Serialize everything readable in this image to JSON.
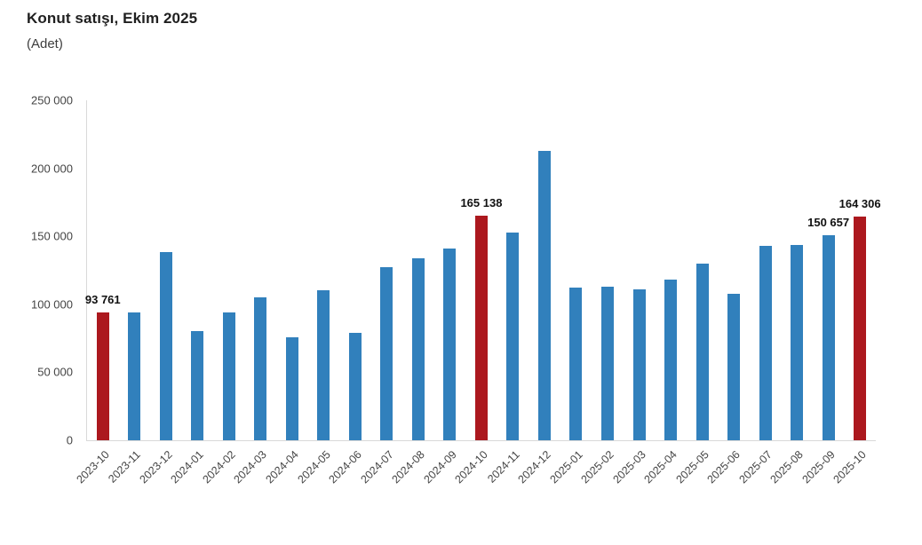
{
  "header": {
    "title": "Konut satışı, Ekim 2025",
    "subtitle": "(Adet)"
  },
  "colors": {
    "bar_default": "#3180BC",
    "bar_highlight": "#AC181E",
    "axis_line": "#D9D9D9",
    "tick_text": "#444444",
    "label_text": "#111111",
    "title_text": "#1F1F1F"
  },
  "chart_data": {
    "type": "bar",
    "title": "Konut satışı, Ekim 2025",
    "subtitle": "(Adet)",
    "xlabel": "",
    "ylabel": "Adet",
    "ylim": [
      0,
      250000
    ],
    "yticks": [
      0,
      50000,
      100000,
      150000,
      200000,
      250000
    ],
    "grid": false,
    "legend": false,
    "categories": [
      "2023-10",
      "2023-11",
      "2023-12",
      "2024-01",
      "2024-02",
      "2024-03",
      "2024-04",
      "2024-05",
      "2024-06",
      "2024-07",
      "2024-08",
      "2024-09",
      "2024-10",
      "2024-11",
      "2024-12",
      "2025-01",
      "2025-02",
      "2025-03",
      "2025-04",
      "2025-05",
      "2025-06",
      "2025-07",
      "2025-08",
      "2025-09",
      "2025-10"
    ],
    "values": [
      93761,
      93748,
      138577,
      80308,
      93902,
      105394,
      75569,
      110588,
      79313,
      127088,
      134155,
      140919,
      165138,
      153014,
      212637,
      112173,
      112818,
      110795,
      118359,
      130025,
      107723,
      142858,
      143319,
      150657,
      164306
    ],
    "highlighted_categories": [
      "2023-10",
      "2024-10",
      "2025-10"
    ],
    "visible_value_labels": {
      "2023-10": "93 761",
      "2024-10": "165 138",
      "2025-09": "150 657",
      "2025-10": "164 306"
    },
    "ytick_labels": [
      "0",
      "50 000",
      "100 000",
      "150 000",
      "200 000",
      "250 000"
    ]
  }
}
